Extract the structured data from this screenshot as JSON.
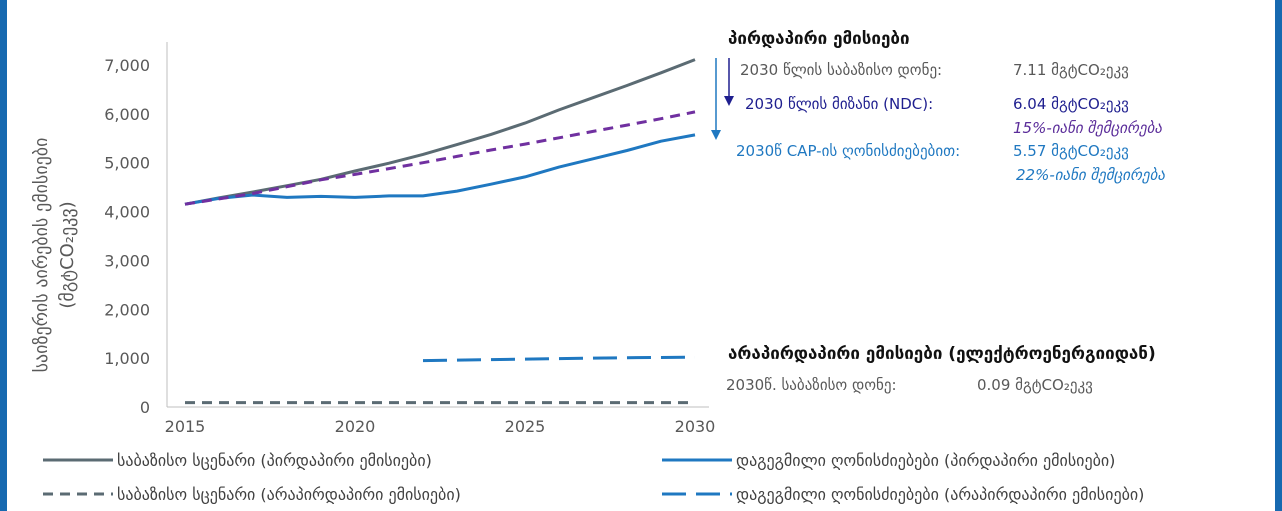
{
  "colors": {
    "baseline": "#5b6b73",
    "planned": "#1f78c1",
    "ndc": "#7030a0",
    "axis": "#bfbfbf",
    "annotation_gray": "#595959",
    "annotation_blue": "#1f78c1",
    "annotation_navy": "#1f1f8f",
    "annotation_purple": "#5b2d9a",
    "frame": "#1769b0"
  },
  "chart_data": {
    "type": "line",
    "ylabel": "საიზერის აირების ემისიები",
    "ylabel_unit": "(მგტCO₂ეკვ)",
    "xlim": [
      2015,
      2030
    ],
    "ylim": [
      0,
      7000
    ],
    "x_ticks": [
      "2015",
      "2020",
      "2025",
      "2030"
    ],
    "y_ticks": [
      "0",
      "1,000",
      "2,000",
      "3,000",
      "4,000",
      "5,000",
      "6,000",
      "7,000"
    ],
    "series": [
      {
        "name": "საბაზისო სცენარი (პირდაპირი ემისიები)",
        "style": "solid",
        "color": "#5b6b73",
        "x": [
          2015,
          2016,
          2017,
          2018,
          2019,
          2020,
          2021,
          2022,
          2023,
          2024,
          2025,
          2026,
          2027,
          2028,
          2029,
          2030
        ],
        "y": [
          4150,
          4280,
          4400,
          4530,
          4660,
          4830,
          4990,
          5170,
          5370,
          5580,
          5810,
          6080,
          6330,
          6580,
          6840,
          7110
        ]
      },
      {
        "name": "დაგეგმილი ღონისძიებები (პირდაპირი ემისიები)",
        "style": "solid",
        "color": "#1f78c1",
        "x": [
          2015,
          2016,
          2017,
          2018,
          2019,
          2020,
          2021,
          2022,
          2023,
          2024,
          2025,
          2026,
          2027,
          2028,
          2029,
          2030
        ],
        "y": [
          4150,
          4270,
          4340,
          4290,
          4310,
          4290,
          4320,
          4320,
          4420,
          4560,
          4710,
          4910,
          5080,
          5250,
          5440,
          5570
        ]
      },
      {
        "name": "2030 წლის მიზანი (NDC)",
        "style": "dash",
        "color": "#7030a0",
        "x": [
          2015,
          2016,
          2017,
          2018,
          2019,
          2020,
          2021,
          2022,
          2023,
          2024,
          2025,
          2026,
          2027,
          2028,
          2029,
          2030
        ],
        "y": [
          4150,
          4260,
          4370,
          4510,
          4650,
          4760,
          4880,
          5000,
          5130,
          5260,
          5380,
          5510,
          5640,
          5770,
          5900,
          6040
        ]
      },
      {
        "name": "საბაზისო სცენარი (არაპირდაპირი ემისიები)",
        "style": "dash",
        "color": "#5b6b73",
        "x": [
          2015,
          2020,
          2025,
          2030
        ],
        "y": [
          90,
          90,
          90,
          90
        ]
      },
      {
        "name": "დაგეგმილი ღონისძიებები (არაპირდაპირი ემისიები)",
        "style": "longdash",
        "color": "#1f78c1",
        "x": [
          2022,
          2024,
          2026,
          2028,
          2030
        ],
        "y": [
          950,
          970,
          990,
          1010,
          1020
        ]
      }
    ]
  },
  "annotations": {
    "direct_title": "პირდაპირი ემისიები",
    "baseline_2030_label": "2030 წლის საბაზისო დონე:",
    "baseline_2030_value": "7.11 მგტCO₂ეკვ",
    "ndc_label": "2030 წლის მიზანი (NDC):",
    "ndc_value": "6.04 მგტCO₂ეკვ",
    "ndc_reduction": "15%-იანი შემცირება",
    "cap_label": "2030წ CAP-ის ღონისძიებებით:",
    "cap_value": "5.57 მგტCO₂ეკვ",
    "cap_reduction": "22%-იანი შემცირება",
    "indirect_title": "არაპირდაპირი ემისიები (ელექტროენერგიიდან)",
    "indirect_label": "2030წ. საბაზისო დონე:",
    "indirect_value": "0.09 მგტCO₂ეკვ"
  },
  "legend": [
    {
      "label": "საბაზისო სცენარი (პირდაპირი ემისიები)",
      "style": "solid",
      "color": "#5b6b73"
    },
    {
      "label": "დაგეგმილი ღონისძიებები (პირდაპირი ემისიები)",
      "style": "solid",
      "color": "#1f78c1"
    },
    {
      "label": "საბაზისო სცენარი (არაპირდაპირი ემისიები)",
      "style": "dash",
      "color": "#5b6b73"
    },
    {
      "label": "დაგეგმილი ღონისძიებები (არაპირდაპირი ემისიები)",
      "style": "longdash",
      "color": "#1f78c1"
    }
  ]
}
